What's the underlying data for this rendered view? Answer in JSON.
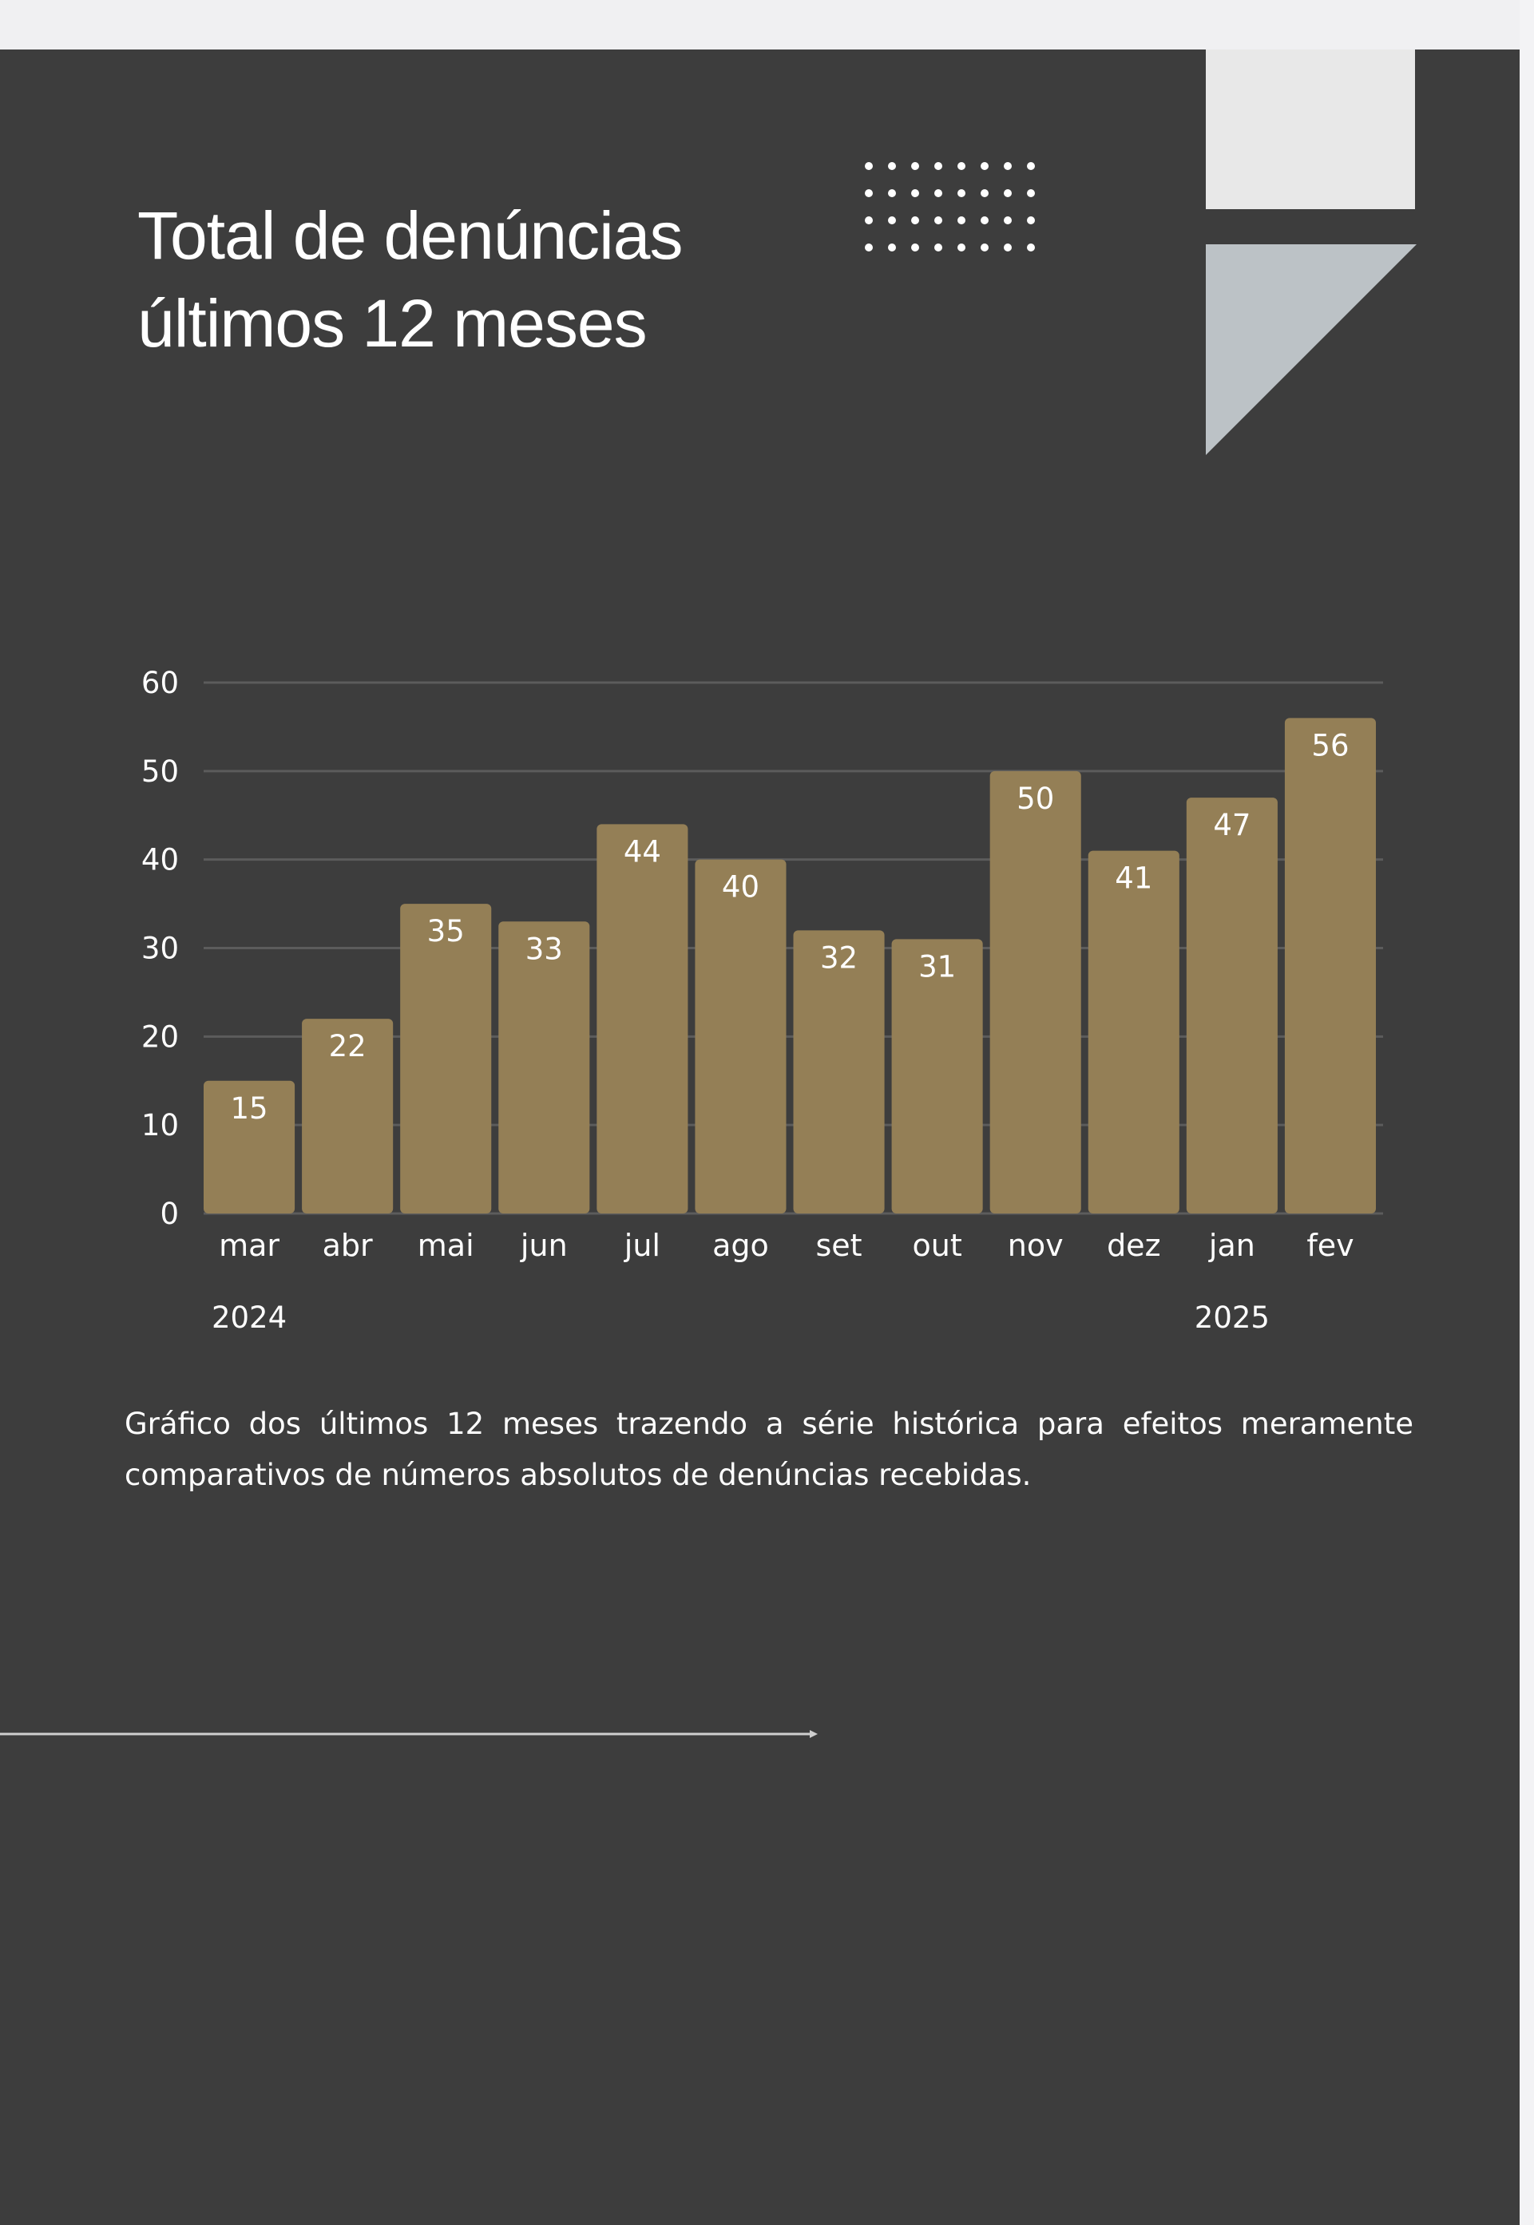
{
  "title_line1": "Total de denúncias",
  "title_line2": "últimos 12 meses",
  "caption": "Gráfico dos últimos 12 meses trazendo a série histórica para efeitos meramente comparativos de números absolutos de denúncias recebidas.",
  "colors": {
    "background": "#3d3d3d",
    "bar": "#947f56",
    "text": "#ffffff",
    "gridline": "#5c5c5c",
    "decor_rect": "#e8e8e8",
    "decor_triangle": "#bcc2c6"
  },
  "chart_data": {
    "type": "bar",
    "categories": [
      "mar",
      "abr",
      "mai",
      "jun",
      "jul",
      "ago",
      "set",
      "out",
      "nov",
      "dez",
      "jan",
      "fev"
    ],
    "values": [
      15,
      22,
      35,
      33,
      44,
      40,
      32,
      31,
      50,
      41,
      47,
      56
    ],
    "year_labels": [
      {
        "category": "mar",
        "label": "2024"
      },
      {
        "category": "jan",
        "label": "2025"
      }
    ],
    "title": "",
    "xlabel": "",
    "ylabel": "",
    "ylim": [
      0,
      60
    ],
    "yticks": [
      0,
      10,
      20,
      30,
      40,
      50,
      60
    ],
    "grid": true,
    "data_labels": true
  }
}
